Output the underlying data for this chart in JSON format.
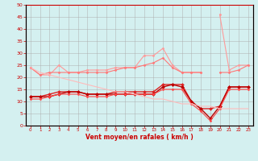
{
  "x": [
    0,
    1,
    2,
    3,
    4,
    5,
    6,
    7,
    8,
    9,
    10,
    11,
    12,
    13,
    14,
    15,
    16,
    17,
    18,
    19,
    20,
    21,
    22,
    23
  ],
  "series": [
    {
      "name": "line1_light",
      "color": "#ff9999",
      "linewidth": 0.8,
      "marker": "D",
      "markersize": 1.5,
      "y": [
        24,
        21,
        21,
        25,
        22,
        22,
        23,
        23,
        23,
        24,
        24,
        24,
        29,
        29,
        32,
        25,
        22,
        22,
        22,
        null,
        46,
        23,
        25,
        25
      ]
    },
    {
      "name": "line2_medium",
      "color": "#ff7777",
      "linewidth": 0.8,
      "marker": "D",
      "markersize": 1.5,
      "y": [
        24,
        21,
        22,
        22,
        22,
        22,
        22,
        22,
        22,
        23,
        24,
        24,
        25,
        26,
        28,
        24,
        22,
        22,
        22,
        null,
        22,
        22,
        23,
        25
      ]
    },
    {
      "name": "line3_dark",
      "color": "#dd2222",
      "linewidth": 1.0,
      "marker": "D",
      "markersize": 2.0,
      "y": [
        12,
        12,
        13,
        14,
        14,
        14,
        13,
        13,
        13,
        14,
        14,
        14,
        14,
        14,
        17,
        17,
        17,
        10,
        7,
        7,
        8,
        16,
        16,
        16
      ]
    },
    {
      "name": "line4_darkest",
      "color": "#bb0000",
      "linewidth": 1.0,
      "marker": "D",
      "markersize": 2.0,
      "y": [
        12,
        12,
        12,
        13,
        14,
        14,
        13,
        13,
        13,
        13,
        13,
        13,
        13,
        13,
        16,
        17,
        16,
        10,
        7,
        3,
        8,
        16,
        16,
        16
      ]
    },
    {
      "name": "line5_mid",
      "color": "#ff4444",
      "linewidth": 0.8,
      "marker": "D",
      "markersize": 1.5,
      "y": [
        11,
        11,
        12,
        13,
        13,
        13,
        12,
        12,
        12,
        13,
        13,
        13,
        13,
        13,
        15,
        15,
        15,
        9,
        6,
        2,
        7,
        15,
        15,
        15
      ]
    },
    {
      "name": "line6_fade",
      "color": "#ffbbbb",
      "linewidth": 0.8,
      "marker": null,
      "markersize": 0,
      "y": [
        24,
        22,
        21,
        20,
        19,
        18,
        17,
        16,
        15,
        14,
        14,
        13,
        12,
        11,
        11,
        10,
        9,
        9,
        8,
        8,
        7,
        7,
        7,
        7
      ]
    }
  ],
  "xlabel": "Vent moyen/en rafales ( km/h )",
  "xlim_min": -0.5,
  "xlim_max": 23.5,
  "ylim": [
    0,
    50
  ],
  "yticks": [
    0,
    5,
    10,
    15,
    20,
    25,
    30,
    35,
    40,
    45,
    50
  ],
  "xticks": [
    0,
    1,
    2,
    3,
    4,
    5,
    6,
    7,
    8,
    9,
    10,
    11,
    12,
    13,
    14,
    15,
    16,
    17,
    18,
    19,
    20,
    21,
    22,
    23
  ],
  "bg_color": "#d4f0f0",
  "grid_color": "#aaaaaa",
  "xlabel_color": "#cc0000",
  "tick_color": "#cc0000",
  "spine_color": "#cc0000"
}
